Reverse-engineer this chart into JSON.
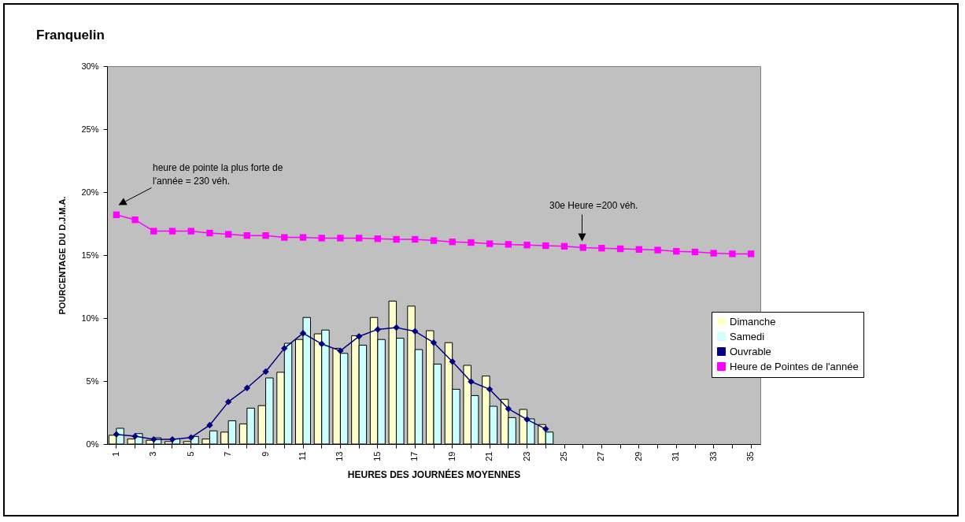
{
  "chart_data": {
    "type": "bar",
    "title": "Franquelin",
    "xlabel": "HEURES DES JOURNÉES MOYENNES",
    "ylabel": "POURCENTAGE DU D.J.M.A.",
    "categories": [
      "1",
      null,
      "3",
      null,
      "5",
      null,
      "7",
      null,
      "9",
      null,
      "11",
      null,
      "13",
      null,
      "15",
      null,
      "17",
      null,
      "19",
      null,
      "21",
      null,
      "23",
      null,
      "25",
      null,
      "27",
      null,
      "29",
      null,
      "31",
      null,
      "33",
      null,
      "35"
    ],
    "series": [
      {
        "name": "Dimanche",
        "color": "#ffffcc",
        "values": [
          0.7,
          0.4,
          0.3,
          0.2,
          0.2,
          0.4,
          0.95,
          1.6,
          3.05,
          5.7,
          8.3,
          8.75,
          7.6,
          8.6,
          10.05,
          11.35,
          10.95,
          9.0,
          8.05,
          6.25,
          5.4,
          3.55,
          2.75,
          1.55,
          null,
          null,
          null,
          null,
          null,
          null,
          null,
          null,
          null,
          null,
          null
        ]
      },
      {
        "name": "Samedi",
        "color": "#ccffff",
        "values": [
          1.25,
          0.83,
          0.5,
          0.4,
          0.6,
          1.05,
          1.85,
          2.85,
          5.25,
          8.0,
          10.05,
          9.05,
          7.2,
          7.85,
          8.3,
          8.4,
          7.5,
          6.35,
          4.35,
          3.85,
          3.0,
          2.1,
          2.0,
          0.95,
          null,
          null,
          null,
          null,
          null,
          null,
          null,
          null,
          null,
          null,
          null
        ]
      },
      {
        "name": "Ouvrable",
        "type": "line",
        "color": "#000080",
        "marker": "diamond",
        "values": [
          0.77,
          0.62,
          0.37,
          0.37,
          0.52,
          1.5,
          3.35,
          4.45,
          5.75,
          7.6,
          8.8,
          7.95,
          7.4,
          8.55,
          9.1,
          9.25,
          8.95,
          8.05,
          6.55,
          4.95,
          4.35,
          2.8,
          1.95,
          1.2,
          null,
          null,
          null,
          null,
          null,
          null,
          null,
          null,
          null,
          null,
          null
        ]
      },
      {
        "name": "Heure de Pointes de l'année",
        "type": "line",
        "color": "#ff00ff",
        "marker": "square",
        "values": [
          18.2,
          17.8,
          16.9,
          16.9,
          16.9,
          16.75,
          16.65,
          16.55,
          16.55,
          16.4,
          16.4,
          16.35,
          16.35,
          16.35,
          16.3,
          16.25,
          16.25,
          16.15,
          16.05,
          16.0,
          15.9,
          15.85,
          15.8,
          15.75,
          15.7,
          15.6,
          15.55,
          15.5,
          15.45,
          15.4,
          15.3,
          15.25,
          15.15,
          15.1,
          15.1
        ]
      }
    ],
    "ylim": [
      0,
      30
    ],
    "yticks": [
      {
        "value": 0,
        "label": "0%"
      },
      {
        "value": 5,
        "label": "5%"
      },
      {
        "value": 10,
        "label": "10%"
      },
      {
        "value": 15,
        "label": "15%"
      },
      {
        "value": 20,
        "label": "20%"
      },
      {
        "value": 25,
        "label": "25%"
      },
      {
        "value": 30,
        "label": "30%"
      }
    ],
    "grid": false,
    "legend": "right",
    "annotations": [
      "heure de pointe la plus forte de l'année = 230 véh.",
      "30e Heure =200 véh."
    ]
  }
}
